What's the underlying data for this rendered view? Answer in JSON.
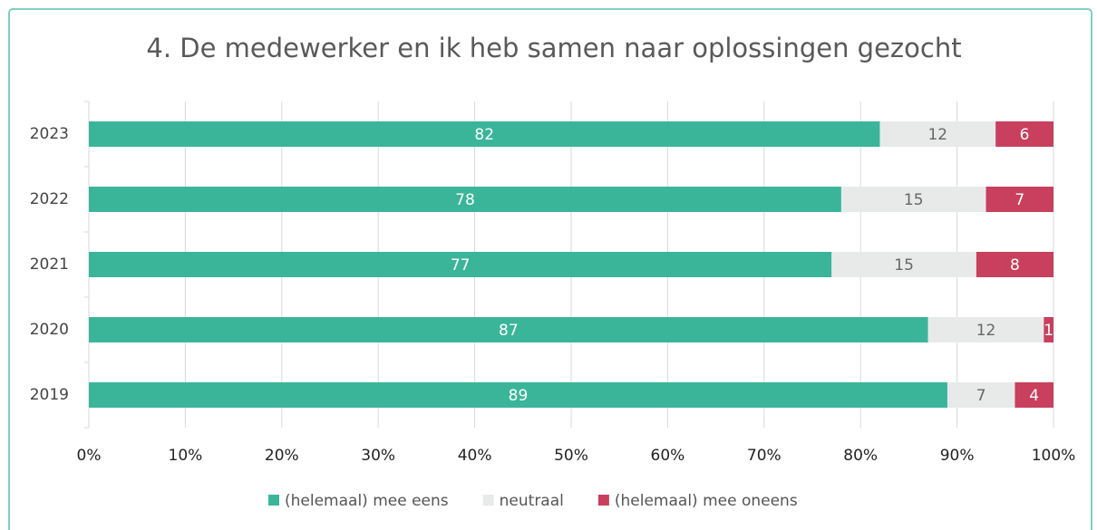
{
  "chart_data": {
    "type": "stacked_barh",
    "title": "4. De medewerker en ik heb samen naar oplossingen gezocht",
    "categories": [
      "2023",
      "2022",
      "2021",
      "2020",
      "2019"
    ],
    "series": [
      {
        "name": "(helemaal) mee eens",
        "color": "#3bb59a",
        "label_color": "#ffffff",
        "values": [
          82,
          78,
          77,
          87,
          89
        ]
      },
      {
        "name": "neutraal",
        "color": "#e8eaea",
        "label_color": "#666666",
        "values": [
          12,
          15,
          15,
          12,
          7
        ]
      },
      {
        "name": "(helemaal) mee oneens",
        "color": "#c8405e",
        "label_color": "#ffffff",
        "values": [
          6,
          7,
          8,
          1,
          4
        ]
      }
    ],
    "xlim": [
      0,
      100
    ],
    "xticks": [
      {
        "value": 0,
        "label": "0%"
      },
      {
        "value": 10,
        "label": "10%"
      },
      {
        "value": 20,
        "label": "20%"
      },
      {
        "value": 30,
        "label": "30%"
      },
      {
        "value": 40,
        "label": "40%"
      },
      {
        "value": 50,
        "label": "50%"
      },
      {
        "value": 60,
        "label": "60%"
      },
      {
        "value": 70,
        "label": "70%"
      },
      {
        "value": 80,
        "label": "80%"
      },
      {
        "value": 90,
        "label": "90%"
      },
      {
        "value": 100,
        "label": "100%"
      }
    ],
    "grid": true,
    "legend": "bottom"
  }
}
